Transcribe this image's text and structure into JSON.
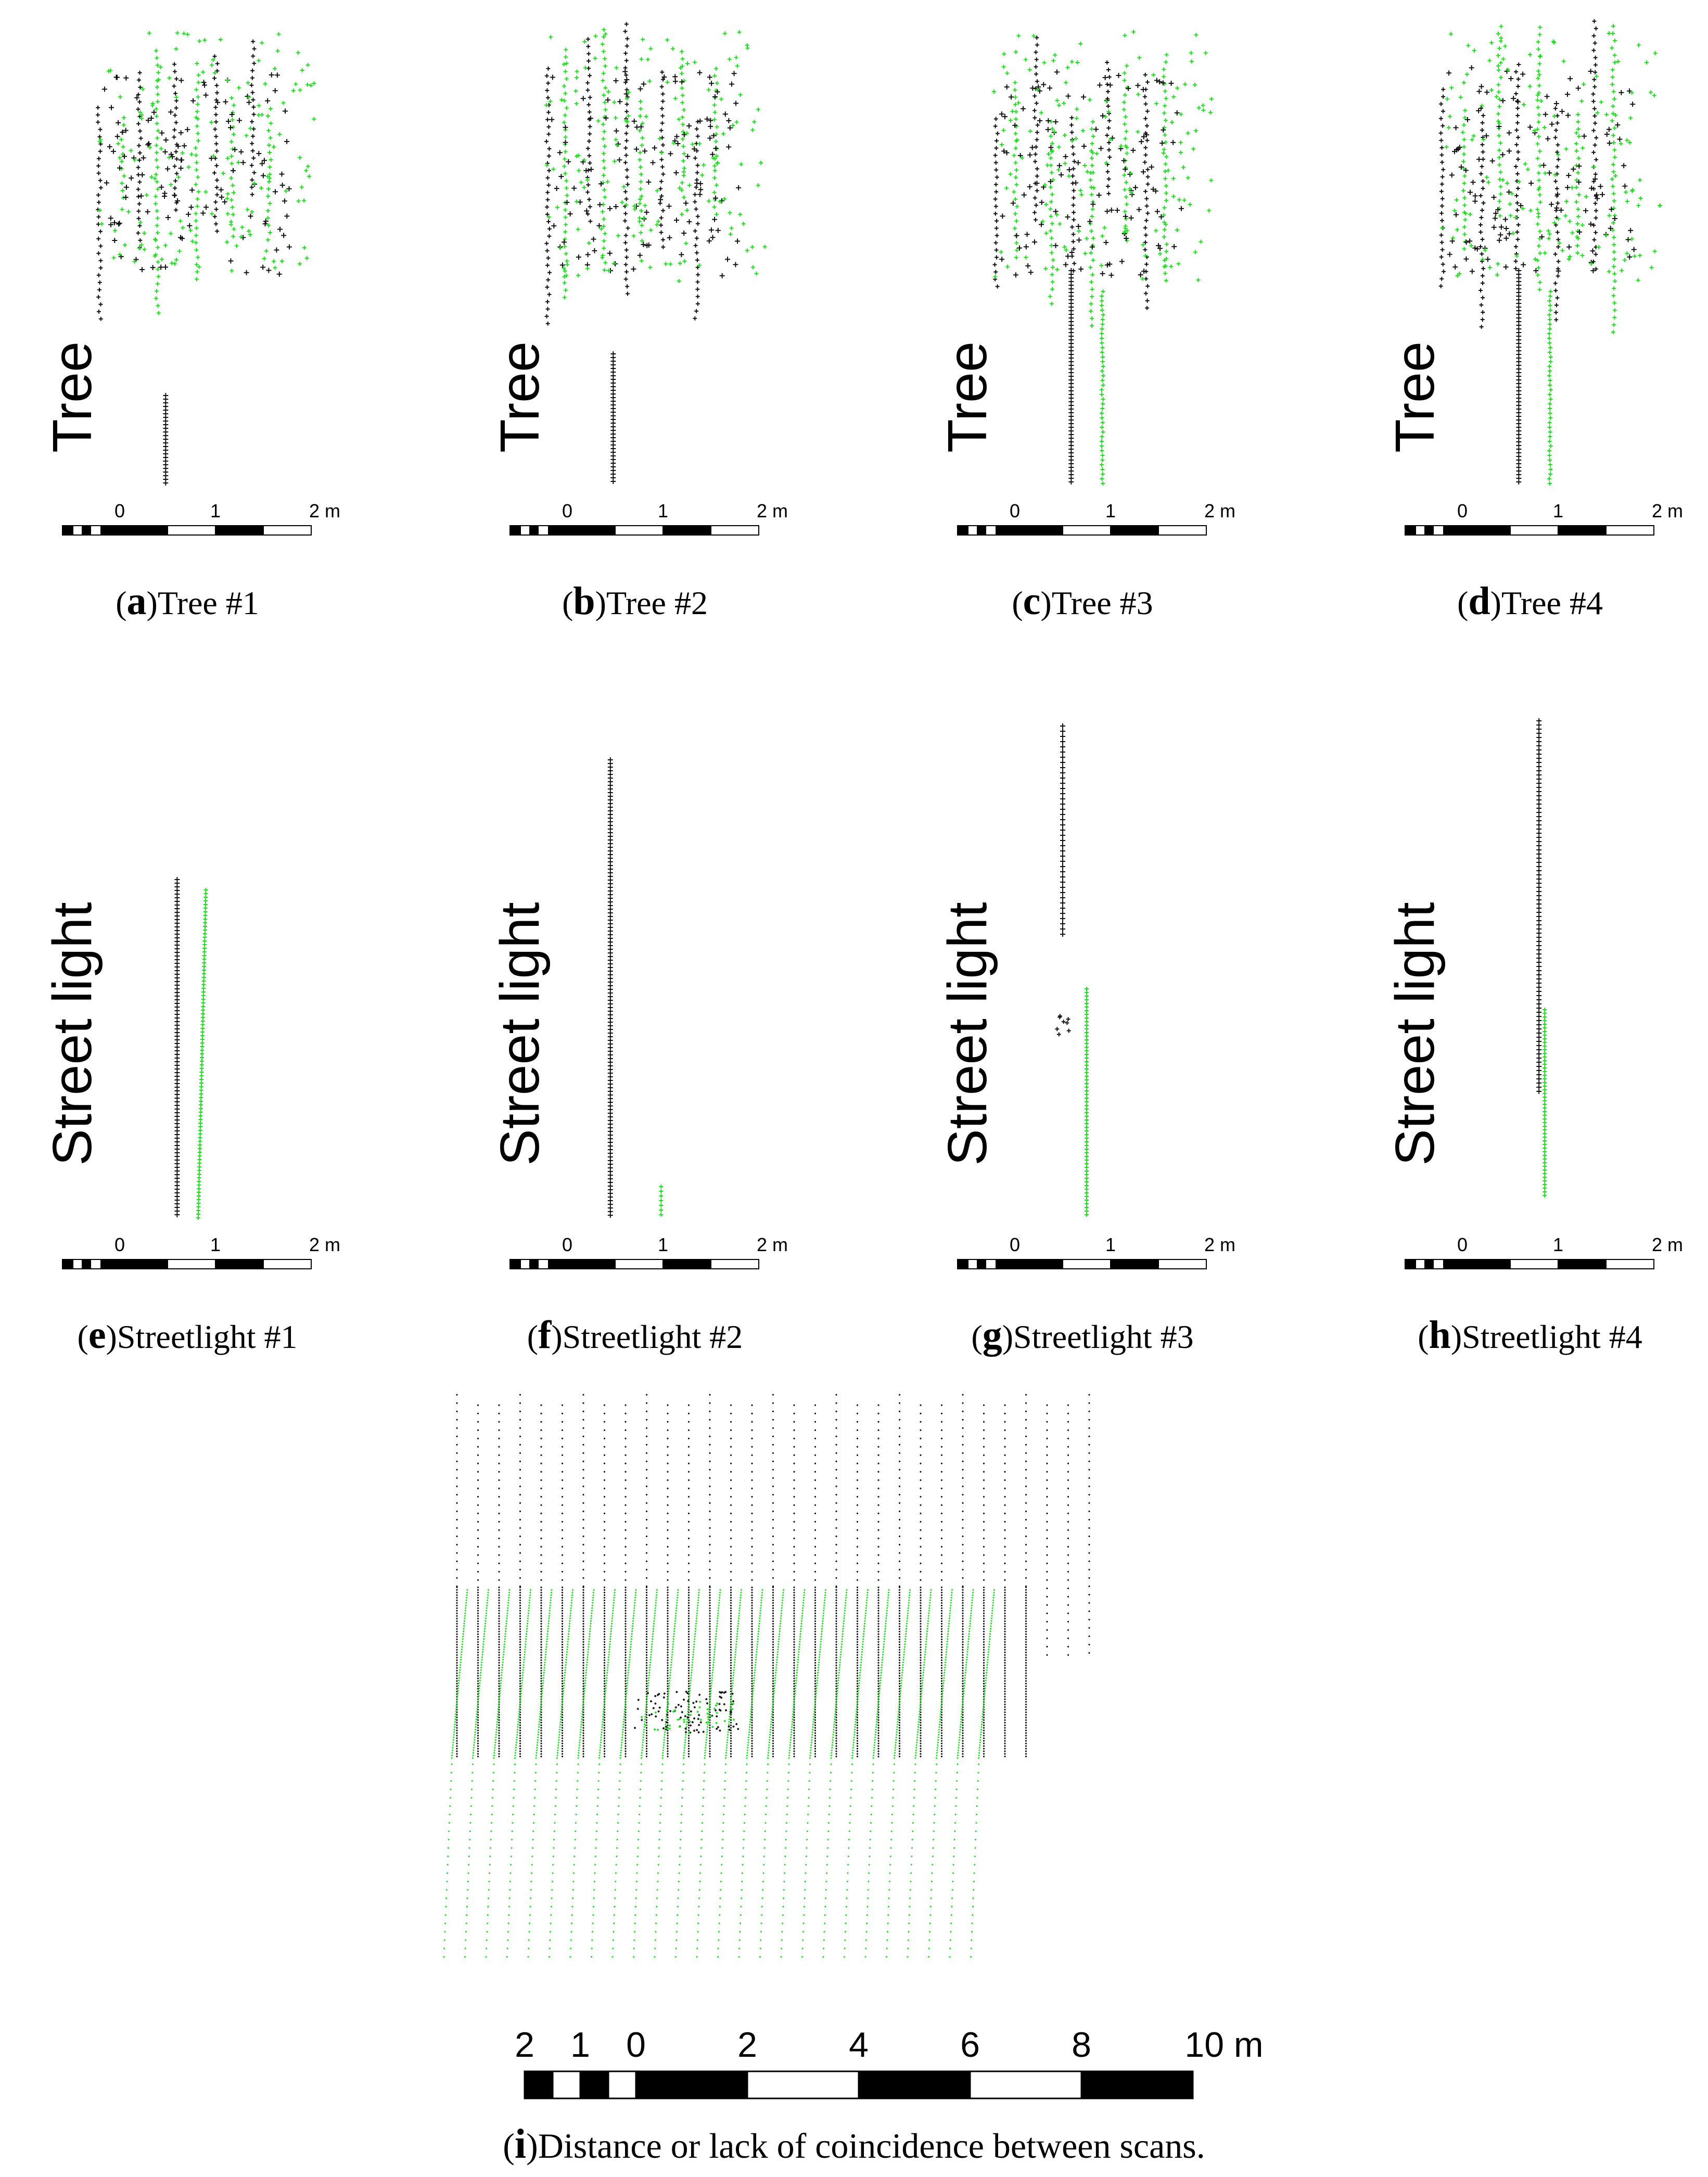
{
  "colors": {
    "scan_a": "#111111",
    "scan_b": "#22dd22",
    "bar_dark": "#000000",
    "bar_light": "#ffffff"
  },
  "scale_small": {
    "ticks": [
      "0",
      "1",
      "2 m"
    ]
  },
  "scale_large": {
    "ticks": [
      "2",
      "1",
      "0",
      "2",
      "4",
      "6",
      "8",
      "10 m"
    ]
  },
  "panels": [
    {
      "letter": "a",
      "title": "Tree #1",
      "object": "Tree",
      "kind": "tree"
    },
    {
      "letter": "b",
      "title": "Tree #2",
      "object": "Tree",
      "kind": "tree"
    },
    {
      "letter": "c",
      "title": "Tree #3",
      "object": "Tree",
      "kind": "tree"
    },
    {
      "letter": "d",
      "title": "Tree #4",
      "object": "Tree",
      "kind": "tree"
    },
    {
      "letter": "e",
      "title": "Streetlight #1",
      "object": "Street light",
      "kind": "light"
    },
    {
      "letter": "f",
      "title": "Streetlight #2",
      "object": "Street light",
      "kind": "light"
    },
    {
      "letter": "g",
      "title": "Streetlight #3",
      "object": "Street light",
      "kind": "light"
    },
    {
      "letter": "h",
      "title": "Streetlight #4",
      "object": "Street light",
      "kind": "light"
    }
  ],
  "panel_i": {
    "letter": "i",
    "title": "Distance or lack of coincidence between scans."
  }
}
